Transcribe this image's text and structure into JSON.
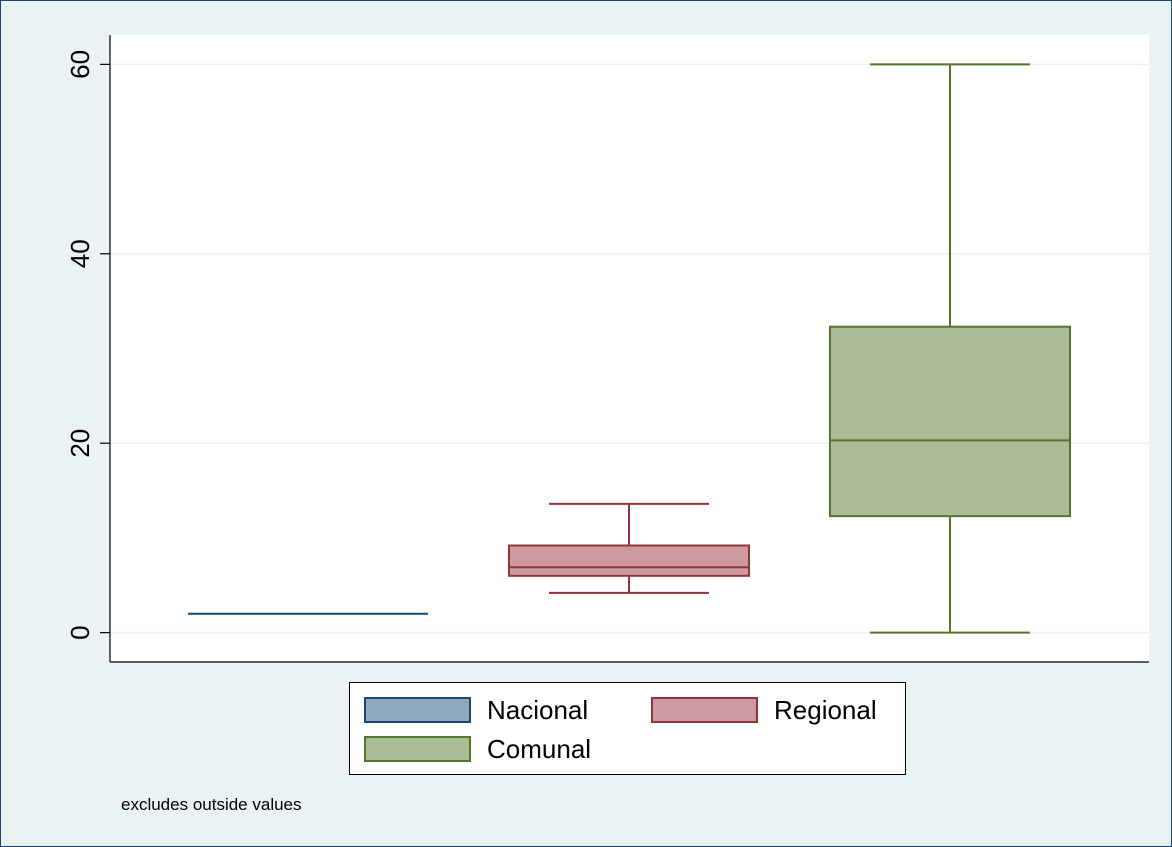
{
  "chart_data": {
    "type": "box",
    "ylim": [
      -3.1,
      63.1
    ],
    "yticks": [
      0,
      20,
      40,
      60
    ],
    "grid": true,
    "legend_position": "bottom",
    "series": [
      {
        "name": "Nacional",
        "lower_whisker": 2,
        "q1": 2,
        "median": 2,
        "q3": 2,
        "upper_whisker": 2,
        "fill": "#90a8be",
        "stroke": "#1a476f"
      },
      {
        "name": "Regional",
        "lower_whisker": 4.2,
        "q1": 6.0,
        "median": 6.9,
        "q3": 9.2,
        "upper_whisker": 13.6,
        "fill": "#cc9aa0",
        "stroke": "#90353b"
      },
      {
        "name": "Comunal",
        "lower_whisker": 0,
        "q1": 12.3,
        "median": 20.3,
        "q3": 32.3,
        "upper_whisker": 60,
        "fill": "#abbb95",
        "stroke": "#55752f"
      }
    ],
    "note": "excludes outside values"
  }
}
